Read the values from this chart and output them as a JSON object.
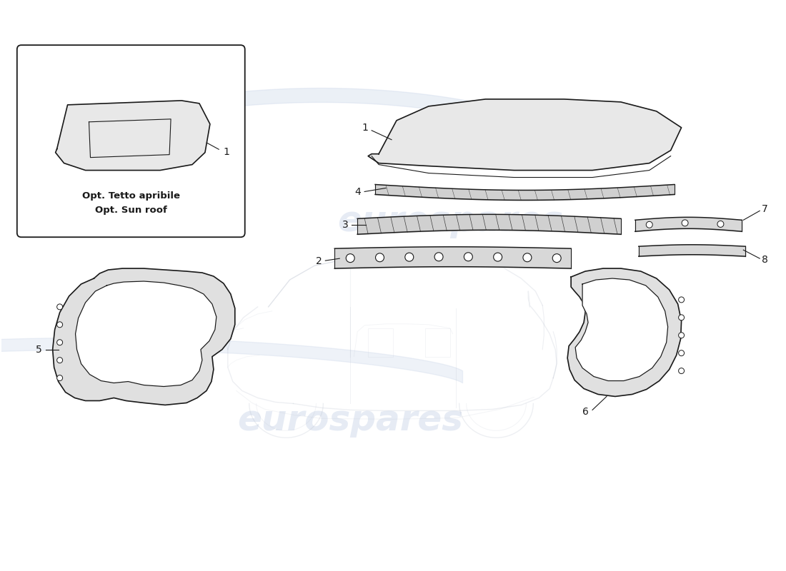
{
  "bg_color": "#ffffff",
  "watermark_text": "eurospares",
  "watermark_color": "#c8d4e8",
  "watermark_alpha": 0.45,
  "box_label_line1": "Opt. Tetto apribile",
  "box_label_line2": "Opt. Sun roof",
  "line_color": "#1a1a1a",
  "ghost_color": "#b0b8c8",
  "part_label_fontsize": 10
}
